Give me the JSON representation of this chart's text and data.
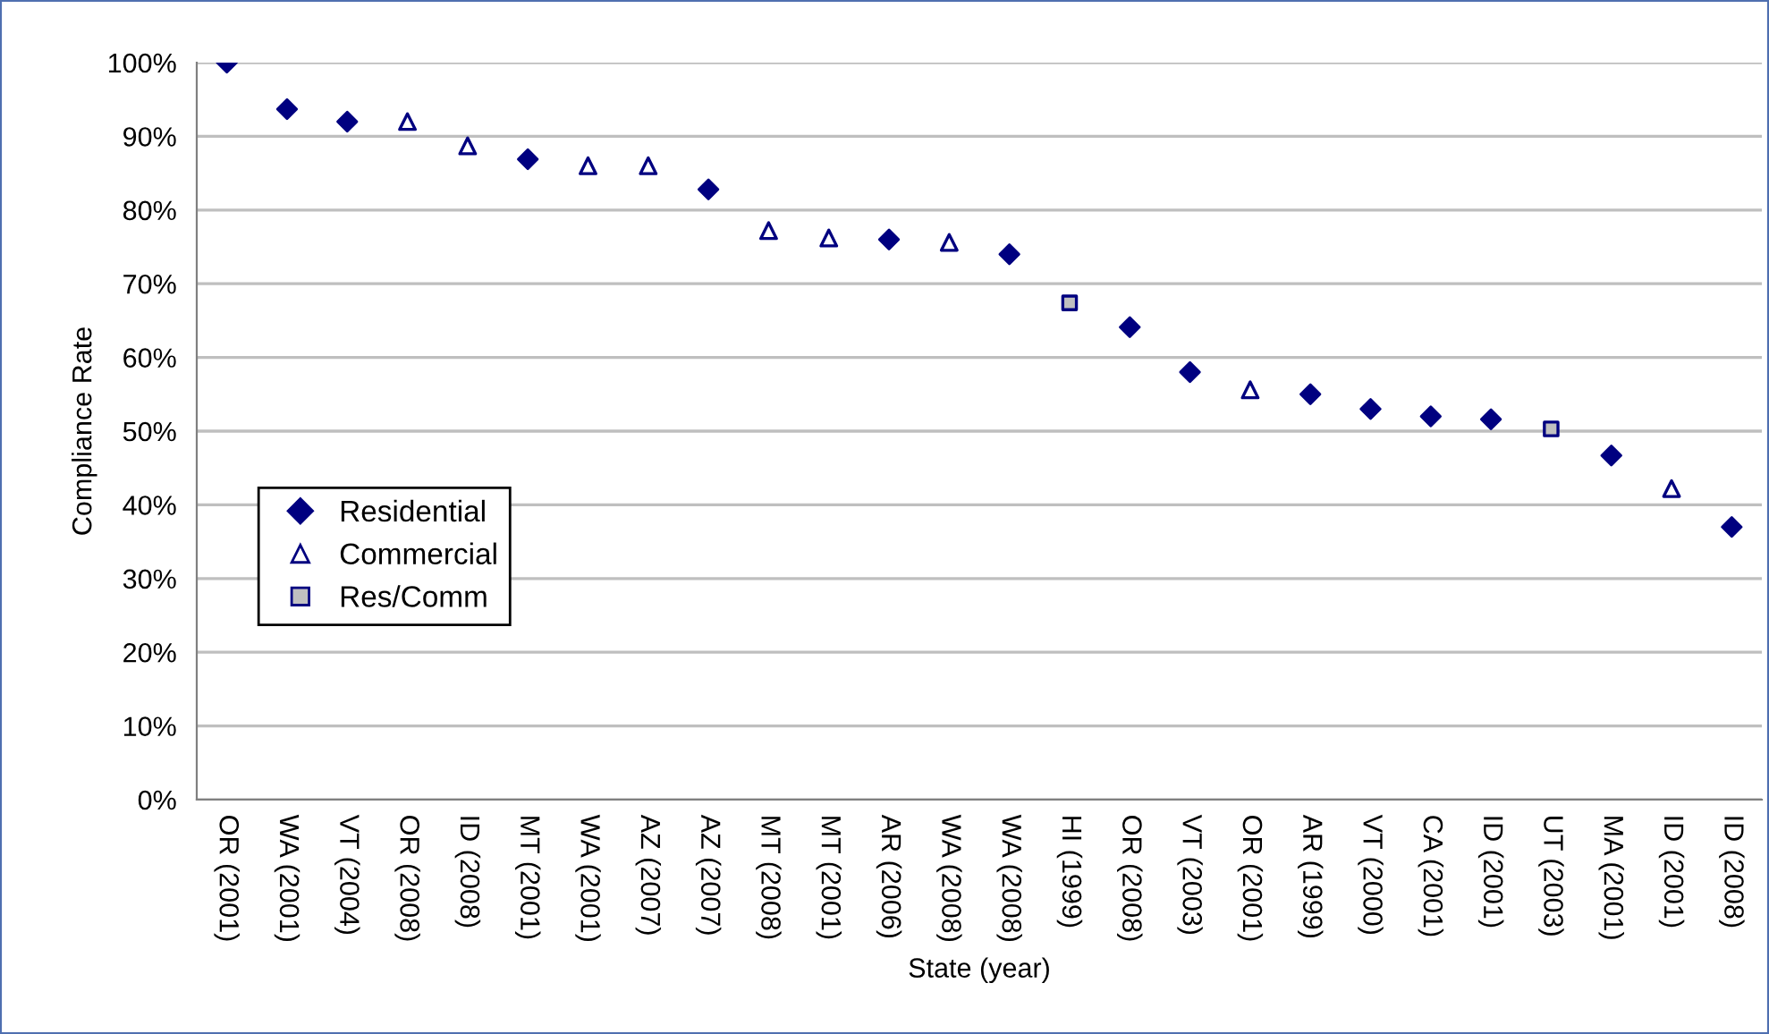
{
  "chart_data": {
    "type": "scatter",
    "xlabel": "State (year)",
    "ylabel": "Compliance Rate",
    "categories": [
      "OR (2001)",
      "WA (2001)",
      "VT (2004)",
      "OR (2008)",
      "ID (2008)",
      "MT (2001)",
      "WA (2001)",
      "AZ (2007)",
      "AZ (2007)",
      "MT (2008)",
      "MT (2001)",
      "AR (2006)",
      "WA (2008)",
      "WA (2008)",
      "HI (1999)",
      "OR (2008)",
      "VT (2003)",
      "OR (2001)",
      "AR (1999)",
      "VT (2000)",
      "CA (2001)",
      "ID (2001)",
      "UT (2003)",
      "MA (2001)",
      "ID (2001)",
      "ID (2008)"
    ],
    "series": [
      {
        "name": "Residential",
        "color": "#000080",
        "marker": "diamond",
        "values": [
          100,
          93.7,
          92.0,
          null,
          null,
          86.9,
          null,
          null,
          82.8,
          null,
          null,
          76.0,
          null,
          74.0,
          null,
          64.1,
          58.0,
          null,
          55.0,
          53.0,
          52.0,
          51.6,
          null,
          46.7,
          null,
          37.0
        ]
      },
      {
        "name": "Commercial",
        "color": "#000080",
        "marker": "triangle",
        "values": [
          null,
          null,
          null,
          92.0,
          88.7,
          null,
          86.0,
          86.0,
          null,
          77.2,
          76.2,
          null,
          75.6,
          null,
          null,
          null,
          null,
          55.6,
          null,
          null,
          null,
          null,
          null,
          null,
          42.2,
          null
        ]
      },
      {
        "name": "Res/Comm",
        "color": "#c0c0c0",
        "marker": "square",
        "values": [
          null,
          null,
          null,
          null,
          null,
          null,
          null,
          null,
          null,
          null,
          null,
          null,
          null,
          null,
          67.4,
          null,
          null,
          null,
          null,
          null,
          null,
          null,
          50.3,
          null,
          null,
          null
        ]
      }
    ],
    "ylim": [
      0,
      100
    ],
    "yticks": [
      {
        "value": 0,
        "label": "0%"
      },
      {
        "value": 10,
        "label": "10%"
      },
      {
        "value": 20,
        "label": "20%"
      },
      {
        "value": 30,
        "label": "30%"
      },
      {
        "value": 40,
        "label": "40%"
      },
      {
        "value": 50,
        "label": "50%"
      },
      {
        "value": 60,
        "label": "60%"
      },
      {
        "value": 70,
        "label": "70%"
      },
      {
        "value": 80,
        "label": "80%"
      },
      {
        "value": 90,
        "label": "90%"
      },
      {
        "value": 100,
        "label": "100%"
      }
    ],
    "grid": "y",
    "legend": "left"
  }
}
